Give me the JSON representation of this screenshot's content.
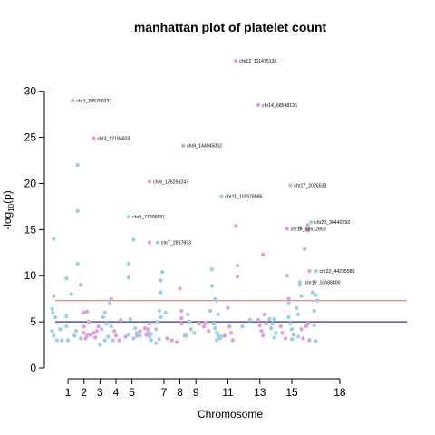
{
  "chart_data": {
    "type": "scatter",
    "title": "manhattan plot of platelet count",
    "xlabel": "Chromosome",
    "ylabel": "-log10(p)",
    "ylim": [
      0,
      34
    ],
    "xlim": [
      0.2,
      22.2
    ],
    "y_ticks": [
      0,
      5,
      10,
      15,
      20,
      25,
      30
    ],
    "x_ticks": [
      1,
      2,
      3,
      4,
      5,
      7,
      8,
      9,
      11,
      13,
      15,
      18
    ],
    "x_tick_labels": [
      "1",
      "2",
      "3",
      "4",
      "5",
      "7",
      "8",
      "9",
      "11",
      "13",
      "15",
      "18"
    ],
    "grid": false,
    "thresholds": [
      {
        "value": 7.3,
        "color": "#e8766e"
      },
      {
        "value": 5.0,
        "color": "#2c2ca8"
      }
    ],
    "colors": {
      "odd": "#9ccfe8",
      "even": "#e0a0e0"
    },
    "points": [
      {
        "x": 0.1,
        "y": 14.0,
        "c": "odd"
      },
      {
        "x": 0.1,
        "y": 7.8,
        "c": "odd"
      },
      {
        "x": 0.0,
        "y": 6.4,
        "c": "odd"
      },
      {
        "x": 0.05,
        "y": 6.0,
        "c": "odd"
      },
      {
        "x": 0.2,
        "y": 5.5,
        "c": "odd"
      },
      {
        "x": 0.0,
        "y": 4.0,
        "c": "odd"
      },
      {
        "x": 0.1,
        "y": 3.5,
        "c": "odd"
      },
      {
        "x": 0.3,
        "y": 3.0,
        "c": "odd"
      },
      {
        "x": 0.6,
        "y": 3.0,
        "c": "odd"
      },
      {
        "x": 0.5,
        "y": 4.2,
        "c": "odd"
      },
      {
        "x": 0.9,
        "y": 9.7,
        "c": "odd"
      },
      {
        "x": 0.9,
        "y": 5.6,
        "c": "odd"
      },
      {
        "x": 1.0,
        "y": 3.0,
        "c": "odd"
      },
      {
        "x": 0.9,
        "y": 4.5,
        "c": "odd"
      },
      {
        "x": 1.2,
        "y": 8.0,
        "c": "odd"
      },
      {
        "x": 1.4,
        "y": 3.5,
        "c": "odd"
      },
      {
        "x": 1.6,
        "y": 22.0,
        "c": "odd"
      },
      {
        "x": 1.6,
        "y": 17.0,
        "c": "odd"
      },
      {
        "x": 1.6,
        "y": 11.3,
        "c": "odd"
      },
      {
        "x": 1.5,
        "y": 4.0,
        "c": "odd"
      },
      {
        "x": 1.8,
        "y": 3.2,
        "c": "odd"
      },
      {
        "x": 1.3,
        "y": 29.0,
        "c": "odd"
      },
      {
        "x": 1.8,
        "y": 9.0,
        "c": "even"
      },
      {
        "x": 2.0,
        "y": 6.0,
        "c": "even"
      },
      {
        "x": 2.2,
        "y": 6.1,
        "c": "even"
      },
      {
        "x": 2.0,
        "y": 4.5,
        "c": "even"
      },
      {
        "x": 2.0,
        "y": 3.8,
        "c": "even"
      },
      {
        "x": 2.2,
        "y": 3.5,
        "c": "even"
      },
      {
        "x": 2.1,
        "y": 3.2,
        "c": "even"
      },
      {
        "x": 2.4,
        "y": 3.6,
        "c": "even"
      },
      {
        "x": 2.6,
        "y": 3.8,
        "c": "even"
      },
      {
        "x": 2.8,
        "y": 4.0,
        "c": "even"
      },
      {
        "x": 2.7,
        "y": 3.3,
        "c": "even"
      },
      {
        "x": 2.9,
        "y": 4.5,
        "c": "even"
      },
      {
        "x": 2.3,
        "y": 5.0,
        "c": "even"
      },
      {
        "x": 2.6,
        "y": 24.9,
        "c": "even"
      },
      {
        "x": 3.0,
        "y": 2.5,
        "c": "odd"
      },
      {
        "x": 3.1,
        "y": 4.2,
        "c": "odd"
      },
      {
        "x": 3.2,
        "y": 5.5,
        "c": "odd"
      },
      {
        "x": 3.3,
        "y": 6.0,
        "c": "odd"
      },
      {
        "x": 3.3,
        "y": 3.0,
        "c": "odd"
      },
      {
        "x": 3.5,
        "y": 3.4,
        "c": "odd"
      },
      {
        "x": 3.6,
        "y": 7.0,
        "c": "odd"
      },
      {
        "x": 3.7,
        "y": 4.5,
        "c": "odd"
      },
      {
        "x": 3.8,
        "y": 3.0,
        "c": "odd"
      },
      {
        "x": 3.4,
        "y": 4.8,
        "c": "odd"
      },
      {
        "x": 3.7,
        "y": 7.5,
        "c": "even"
      },
      {
        "x": 3.9,
        "y": 4.0,
        "c": "even"
      },
      {
        "x": 4.0,
        "y": 3.5,
        "c": "even"
      },
      {
        "x": 4.2,
        "y": 3.0,
        "c": "even"
      },
      {
        "x": 4.3,
        "y": 5.2,
        "c": "even"
      },
      {
        "x": 4.6,
        "y": 3.4,
        "c": "even"
      },
      {
        "x": 4.8,
        "y": 16.4,
        "c": "odd"
      },
      {
        "x": 4.8,
        "y": 11.3,
        "c": "odd"
      },
      {
        "x": 4.8,
        "y": 9.8,
        "c": "odd"
      },
      {
        "x": 4.9,
        "y": 5.3,
        "c": "odd"
      },
      {
        "x": 4.8,
        "y": 3.6,
        "c": "odd"
      },
      {
        "x": 5.1,
        "y": 13.9,
        "c": "odd"
      },
      {
        "x": 5.2,
        "y": 4.3,
        "c": "odd"
      },
      {
        "x": 5.3,
        "y": 3.8,
        "c": "odd"
      },
      {
        "x": 5.5,
        "y": 3.5,
        "c": "odd"
      },
      {
        "x": 5.1,
        "y": 3.2,
        "c": "odd"
      },
      {
        "x": 5.3,
        "y": 3.5,
        "c": "even"
      },
      {
        "x": 5.5,
        "y": 4.0,
        "c": "even"
      },
      {
        "x": 5.8,
        "y": 4.3,
        "c": "even"
      },
      {
        "x": 5.9,
        "y": 3.6,
        "c": "even"
      },
      {
        "x": 6.1,
        "y": 20.2,
        "c": "even"
      },
      {
        "x": 6.1,
        "y": 13.6,
        "c": "even"
      },
      {
        "x": 6.1,
        "y": 4.8,
        "c": "even"
      },
      {
        "x": 6.0,
        "y": 4.2,
        "c": "even"
      },
      {
        "x": 6.0,
        "y": 3.8,
        "c": "even"
      },
      {
        "x": 6.1,
        "y": 3.4,
        "c": "odd"
      },
      {
        "x": 6.2,
        "y": 3.0,
        "c": "odd"
      },
      {
        "x": 6.2,
        "y": 3.7,
        "c": "odd"
      },
      {
        "x": 6.6,
        "y": 13.6,
        "c": "odd"
      },
      {
        "x": 6.9,
        "y": 10.4,
        "c": "odd"
      },
      {
        "x": 6.8,
        "y": 9.5,
        "c": "odd"
      },
      {
        "x": 6.8,
        "y": 8.2,
        "c": "odd"
      },
      {
        "x": 6.7,
        "y": 6.2,
        "c": "odd"
      },
      {
        "x": 6.6,
        "y": 5.0,
        "c": "odd"
      },
      {
        "x": 6.5,
        "y": 4.2,
        "c": "odd"
      },
      {
        "x": 6.7,
        "y": 3.1,
        "c": "odd"
      },
      {
        "x": 6.5,
        "y": 2.7,
        "c": "odd"
      },
      {
        "x": 7.1,
        "y": 6.0,
        "c": "odd"
      },
      {
        "x": 6.8,
        "y": 5.5,
        "c": "odd"
      },
      {
        "x": 7.2,
        "y": 3.2,
        "c": "even"
      },
      {
        "x": 7.5,
        "y": 3.0,
        "c": "even"
      },
      {
        "x": 7.8,
        "y": 2.8,
        "c": "even"
      },
      {
        "x": 8.0,
        "y": 8.6,
        "c": "even"
      },
      {
        "x": 8.1,
        "y": 6.2,
        "c": "even"
      },
      {
        "x": 8.1,
        "y": 5.4,
        "c": "even"
      },
      {
        "x": 8.1,
        "y": 4.8,
        "c": "even"
      },
      {
        "x": 8.3,
        "y": 3.5,
        "c": "even"
      },
      {
        "x": 8.2,
        "y": 24.1,
        "c": "even"
      },
      {
        "x": 8.5,
        "y": 5.8,
        "c": "odd"
      },
      {
        "x": 8.6,
        "y": 5.0,
        "c": "odd"
      },
      {
        "x": 8.7,
        "y": 4.2,
        "c": "odd"
      },
      {
        "x": 8.4,
        "y": 3.5,
        "c": "odd"
      },
      {
        "x": 8.9,
        "y": 3.8,
        "c": "odd"
      },
      {
        "x": 9.2,
        "y": 4.8,
        "c": "even"
      },
      {
        "x": 9.5,
        "y": 4.5,
        "c": "even"
      },
      {
        "x": 9.8,
        "y": 4.0,
        "c": "even"
      },
      {
        "x": 9.6,
        "y": 4.9,
        "c": "even"
      },
      {
        "x": 10.0,
        "y": 10.7,
        "c": "odd"
      },
      {
        "x": 10.0,
        "y": 8.9,
        "c": "odd"
      },
      {
        "x": 9.9,
        "y": 6.2,
        "c": "odd"
      },
      {
        "x": 10.1,
        "y": 4.8,
        "c": "odd"
      },
      {
        "x": 10.2,
        "y": 7.5,
        "c": "odd"
      },
      {
        "x": 10.3,
        "y": 7.3,
        "c": "odd"
      },
      {
        "x": 10.4,
        "y": 5.8,
        "c": "odd"
      },
      {
        "x": 10.2,
        "y": 4.3,
        "c": "odd"
      },
      {
        "x": 10.3,
        "y": 3.8,
        "c": "odd"
      },
      {
        "x": 10.4,
        "y": 3.5,
        "c": "odd"
      },
      {
        "x": 10.5,
        "y": 3.2,
        "c": "odd"
      },
      {
        "x": 10.3,
        "y": 3.0,
        "c": "odd"
      },
      {
        "x": 10.6,
        "y": 18.6,
        "c": "odd"
      },
      {
        "x": 10.6,
        "y": 3.4,
        "c": "odd"
      },
      {
        "x": 10.8,
        "y": 3.5,
        "c": "even"
      },
      {
        "x": 11.0,
        "y": 6.5,
        "c": "even"
      },
      {
        "x": 11.1,
        "y": 4.5,
        "c": "even"
      },
      {
        "x": 11.2,
        "y": 3.8,
        "c": "even"
      },
      {
        "x": 11.3,
        "y": 3.0,
        "c": "even"
      },
      {
        "x": 11.5,
        "y": 15.4,
        "c": "even"
      },
      {
        "x": 11.6,
        "y": 11.1,
        "c": "even"
      },
      {
        "x": 11.6,
        "y": 9.9,
        "c": "even"
      },
      {
        "x": 11.5,
        "y": 33.3,
        "c": "even"
      },
      {
        "x": 11.9,
        "y": 4.5,
        "c": "odd"
      },
      {
        "x": 12.4,
        "y": 5.2,
        "c": "odd"
      },
      {
        "x": 12.9,
        "y": 28.5,
        "c": "even"
      },
      {
        "x": 12.9,
        "y": 5.2,
        "c": "even"
      },
      {
        "x": 13.0,
        "y": 4.6,
        "c": "even"
      },
      {
        "x": 13.1,
        "y": 4.0,
        "c": "even"
      },
      {
        "x": 13.2,
        "y": 12.3,
        "c": "even"
      },
      {
        "x": 13.3,
        "y": 5.8,
        "c": "even"
      },
      {
        "x": 13.2,
        "y": 3.5,
        "c": "even"
      },
      {
        "x": 13.4,
        "y": 4.8,
        "c": "even"
      },
      {
        "x": 13.6,
        "y": 5.3,
        "c": "odd"
      },
      {
        "x": 13.8,
        "y": 4.8,
        "c": "odd"
      },
      {
        "x": 13.9,
        "y": 5.3,
        "c": "odd"
      },
      {
        "x": 13.7,
        "y": 4.3,
        "c": "odd"
      },
      {
        "x": 14.0,
        "y": 3.8,
        "c": "odd"
      },
      {
        "x": 13.9,
        "y": 3.3,
        "c": "odd"
      },
      {
        "x": 14.3,
        "y": 4.5,
        "c": "even"
      },
      {
        "x": 14.4,
        "y": 3.8,
        "c": "even"
      },
      {
        "x": 14.6,
        "y": 3.2,
        "c": "even"
      },
      {
        "x": 14.9,
        "y": 19.8,
        "c": "odd"
      },
      {
        "x": 14.8,
        "y": 7.0,
        "c": "odd"
      },
      {
        "x": 14.8,
        "y": 5.5,
        "c": "odd"
      },
      {
        "x": 14.9,
        "y": 4.8,
        "c": "odd"
      },
      {
        "x": 15.0,
        "y": 4.2,
        "c": "odd"
      },
      {
        "x": 15.1,
        "y": 3.6,
        "c": "odd"
      },
      {
        "x": 15.0,
        "y": 3.1,
        "c": "odd"
      },
      {
        "x": 15.3,
        "y": 6.5,
        "c": "odd"
      },
      {
        "x": 15.5,
        "y": 9.3,
        "c": "odd"
      },
      {
        "x": 15.5,
        "y": 9.0,
        "c": "odd"
      },
      {
        "x": 15.4,
        "y": 5.8,
        "c": "odd"
      },
      {
        "x": 15.6,
        "y": 7.8,
        "c": "odd"
      },
      {
        "x": 15.4,
        "y": 3.4,
        "c": "odd"
      },
      {
        "x": 14.7,
        "y": 15.1,
        "c": "even"
      },
      {
        "x": 14.7,
        "y": 10.0,
        "c": "even"
      },
      {
        "x": 14.8,
        "y": 7.5,
        "c": "even"
      },
      {
        "x": 15.5,
        "y": 15.2,
        "c": "even"
      },
      {
        "x": 15.6,
        "y": 4.2,
        "c": "even"
      },
      {
        "x": 15.7,
        "y": 3.2,
        "c": "even"
      },
      {
        "x": 15.8,
        "y": 12.9,
        "c": "even"
      },
      {
        "x": 16.0,
        "y": 14.9,
        "c": "even"
      },
      {
        "x": 16.0,
        "y": 15.5,
        "c": "even"
      },
      {
        "x": 16.1,
        "y": 10.5,
        "c": "even"
      },
      {
        "x": 16.0,
        "y": 4.8,
        "c": "even"
      },
      {
        "x": 15.9,
        "y": 4.5,
        "c": "even"
      },
      {
        "x": 16.1,
        "y": 3.0,
        "c": "even"
      },
      {
        "x": 16.2,
        "y": 15.8,
        "c": "odd"
      },
      {
        "x": 16.3,
        "y": 8.2,
        "c": "odd"
      },
      {
        "x": 16.4,
        "y": 6.2,
        "c": "odd"
      },
      {
        "x": 16.4,
        "y": 4.6,
        "c": "odd"
      },
      {
        "x": 16.5,
        "y": 10.5,
        "c": "odd"
      },
      {
        "x": 16.5,
        "y": 7.9,
        "c": "odd"
      },
      {
        "x": 16.6,
        "y": 7.3,
        "c": "odd"
      },
      {
        "x": 16.5,
        "y": 2.9,
        "c": "odd"
      }
    ],
    "annotations": [
      {
        "x": 1.3,
        "y": 29.0,
        "text": "chr1_205290233"
      },
      {
        "x": 2.6,
        "y": 24.9,
        "text": "chr3_12184833"
      },
      {
        "x": 4.8,
        "y": 16.4,
        "text": "chr5_77806851"
      },
      {
        "x": 6.1,
        "y": 20.2,
        "text": "chr6_135259247"
      },
      {
        "x": 6.6,
        "y": 13.6,
        "text": "chr7_2887873"
      },
      {
        "x": 8.2,
        "y": 24.1,
        "text": "chr8_144945062"
      },
      {
        "x": 10.6,
        "y": 18.6,
        "text": "chr11_118978985"
      },
      {
        "x": 11.5,
        "y": 33.3,
        "text": "chr12_111475136"
      },
      {
        "x": 12.9,
        "y": 28.5,
        "text": "chr14_68548136"
      },
      {
        "x": 14.7,
        "y": 15.1,
        "text": "chr16_88512853"
      },
      {
        "x": 14.9,
        "y": 19.8,
        "text": "chr17_2026533"
      },
      {
        "x": 15.6,
        "y": 9.3,
        "text": "chr19_10688400"
      },
      {
        "x": 16.2,
        "y": 15.8,
        "text": "chr20_30440293"
      },
      {
        "x": 16.5,
        "y": 10.5,
        "text": "chr22_44235580"
      }
    ]
  }
}
